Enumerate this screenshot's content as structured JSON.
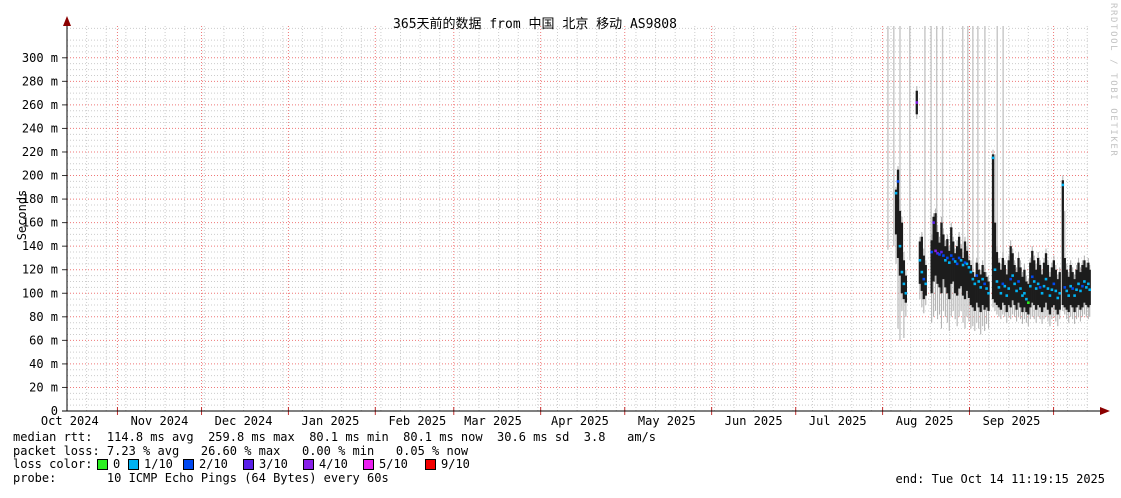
{
  "title": "365天前的数据 from 中国 北京 移动 AS9808",
  "watermark": "RRDTOOL / TOBI OETIKER",
  "y_axis": {
    "label": "Seconds",
    "ticks": [
      {
        "v": 0,
        "label": "0"
      },
      {
        "v": 20,
        "label": "20 m"
      },
      {
        "v": 40,
        "label": "40 m"
      },
      {
        "v": 60,
        "label": "60 m"
      },
      {
        "v": 80,
        "label": "80 m"
      },
      {
        "v": 100,
        "label": "100 m"
      },
      {
        "v": 120,
        "label": "120 m"
      },
      {
        "v": 140,
        "label": "140 m"
      },
      {
        "v": 160,
        "label": "160 m"
      },
      {
        "v": 180,
        "label": "180 m"
      },
      {
        "v": 200,
        "label": "200 m"
      },
      {
        "v": 220,
        "label": "220 m"
      },
      {
        "v": 240,
        "label": "240 m"
      },
      {
        "v": 260,
        "label": "260 m"
      },
      {
        "v": 280,
        "label": "280 m"
      },
      {
        "v": 300,
        "label": "300 m"
      }
    ]
  },
  "x_axis": {
    "range_days": 365,
    "minor_step_days": 7,
    "months": [
      {
        "label": "Oct 2024",
        "tick_day": null,
        "label_day": 1
      },
      {
        "label": "Nov 2024",
        "tick_day": 18,
        "label_day": 33
      },
      {
        "label": "Dec 2024",
        "tick_day": 48,
        "label_day": 63
      },
      {
        "label": "Jan 2025",
        "tick_day": 79,
        "label_day": 94
      },
      {
        "label": "Feb 2025",
        "tick_day": 110,
        "label_day": 125
      },
      {
        "label": "Mar 2025",
        "tick_day": 138,
        "label_day": 152
      },
      {
        "label": "Apr 2025",
        "tick_day": 169,
        "label_day": 183
      },
      {
        "label": "May 2025",
        "tick_day": 199,
        "label_day": 214
      },
      {
        "label": "Jun 2025",
        "tick_day": 230,
        "label_day": 245
      },
      {
        "label": "Jul 2025",
        "tick_day": 260,
        "label_day": 275
      },
      {
        "label": "Aug 2025",
        "tick_day": 291,
        "label_day": 306
      },
      {
        "label": "Sep 2025",
        "tick_day": 322,
        "label_day": 337
      },
      {
        "label": null,
        "tick_day": 352,
        "label_day": null
      }
    ]
  },
  "legend": {
    "median_rtt_line": "median rtt:  114.8 ms avg  259.8 ms max  80.1 ms min  80.1 ms now  30.6 ms sd  3.8   am/s",
    "packet_loss_line": "packet loss: 7.23 % avg   26.60 % max   0.00 % min   0.05 % now",
    "loss_color_label": "loss color:",
    "loss_items": [
      {
        "label": "0",
        "color": "#2bef20"
      },
      {
        "label": "1/10",
        "color": "#00b2f2"
      },
      {
        "label": "2/10",
        "color": "#0048f0"
      },
      {
        "label": "3/10",
        "color": "#5a20e8"
      },
      {
        "label": "4/10",
        "color": "#8820e8"
      },
      {
        "label": "5/10",
        "color": "#ea20f0"
      },
      {
        "label": "9/10",
        "color": "#f20000"
      }
    ],
    "probe_line": "probe:       10 ICMP Echo Pings (64 Bytes) every 60s",
    "end_text": "end: Tue Oct 14 11:19:15 2025"
  },
  "chart_data": {
    "type": "line",
    "subtype": "smokeping-latency-smoke",
    "title": "365天前的数据 from 中国 北京 移动 AS9808",
    "ylabel": "Seconds",
    "ylim_ms": [
      0,
      327
    ],
    "x_unit": "days (0 = start of 365-day window, 365 = Tue Oct 14 11:19:15 2025)",
    "grid": {
      "h_major_step_ms": 20,
      "h_minor_step_ms": 5,
      "v_minor_step_days": 7,
      "major_color": "#ef7777",
      "minor_color": "#cccccc"
    },
    "stats": {
      "median_rtt": {
        "avg_ms": 114.8,
        "max_ms": 259.8,
        "min_ms": 80.1,
        "now_ms": 80.1,
        "sd_ms": 30.6,
        "am_s": 3.8
      },
      "packet_loss": {
        "avg_pct": 7.23,
        "max_pct": 26.6,
        "min_pct": 0.0,
        "now_pct": 0.05
      }
    },
    "loss_palette": {
      "0": "#2bef20",
      "1": "#00b2f2",
      "2": "#0048f0",
      "3": "#5a20e8",
      "4": "#8820e8",
      "5": "#ea20f0",
      "9": "#f20000"
    },
    "gray_lines_format": [
      "day",
      "bottom_ms"
    ],
    "gray_lines": [
      [
        292.9,
        137
      ],
      [
        295.0,
        140
      ],
      [
        297.2,
        134
      ],
      [
        300.7,
        128
      ],
      [
        306.1,
        124
      ],
      [
        308.3,
        121
      ],
      [
        310.3,
        148
      ],
      [
        312.4,
        150
      ],
      [
        319.6,
        111
      ],
      [
        321.4,
        109
      ],
      [
        323.2,
        107
      ],
      [
        325.0,
        107
      ],
      [
        327.5,
        110
      ],
      [
        331.9,
        94
      ],
      [
        334.0,
        97
      ]
    ],
    "columns_format": [
      "day",
      "whisker_lo_ms",
      "whisker_hi_ms",
      "band_lo_ms",
      "band_hi_ms",
      "median_ms",
      "loss_key"
    ],
    "columns": [
      [
        295.8,
        125,
        190,
        150,
        188,
        185,
        "1"
      ],
      [
        296.5,
        70,
        208,
        130,
        205,
        195,
        "2"
      ],
      [
        297.2,
        60,
        180,
        115,
        170,
        140,
        "1"
      ],
      [
        297.9,
        85,
        165,
        100,
        160,
        118,
        "1"
      ],
      [
        298.6,
        62,
        135,
        95,
        128,
        108,
        "1"
      ],
      [
        299.3,
        80,
        120,
        92,
        115,
        100,
        "1"
      ],
      [
        303.2,
        248,
        276,
        252,
        272,
        262,
        "4"
      ],
      [
        304.3,
        95,
        148,
        108,
        144,
        128,
        "1"
      ],
      [
        305.0,
        88,
        152,
        102,
        148,
        118,
        "1"
      ],
      [
        305.7,
        83,
        138,
        95,
        132,
        112,
        "2"
      ],
      [
        306.4,
        90,
        128,
        98,
        124,
        108,
        "1"
      ],
      [
        308.5,
        75,
        150,
        100,
        145,
        135,
        "2"
      ],
      [
        309.2,
        80,
        168,
        110,
        165,
        160,
        "3"
      ],
      [
        309.9,
        85,
        172,
        115,
        168,
        136,
        "4"
      ],
      [
        310.6,
        78,
        158,
        108,
        152,
        134,
        "3"
      ],
      [
        311.3,
        82,
        148,
        105,
        143,
        133,
        "2"
      ],
      [
        312.0,
        70,
        165,
        100,
        160,
        135,
        "3"
      ],
      [
        312.7,
        85,
        155,
        112,
        150,
        132,
        "2"
      ],
      [
        313.4,
        80,
        145,
        105,
        140,
        128,
        "1"
      ],
      [
        314.1,
        75,
        150,
        100,
        146,
        130,
        "2"
      ],
      [
        314.8,
        68,
        140,
        95,
        136,
        126,
        "1"
      ],
      [
        315.5,
        80,
        160,
        108,
        156,
        132,
        "2"
      ],
      [
        316.2,
        85,
        148,
        110,
        144,
        129,
        "2"
      ],
      [
        316.9,
        78,
        138,
        100,
        134,
        127,
        "1"
      ],
      [
        317.6,
        72,
        145,
        98,
        140,
        125,
        "2"
      ],
      [
        318.3,
        80,
        152,
        104,
        148,
        130,
        "2"
      ],
      [
        319.0,
        85,
        142,
        106,
        138,
        128,
        "1"
      ],
      [
        319.7,
        75,
        135,
        98,
        130,
        124,
        "1"
      ],
      [
        320.4,
        70,
        148,
        95,
        144,
        126,
        "2"
      ],
      [
        321.1,
        80,
        140,
        102,
        136,
        125,
        "1"
      ],
      [
        321.8,
        76,
        132,
        96,
        128,
        122,
        "1"
      ],
      [
        322.5,
        70,
        128,
        90,
        124,
        118,
        "1"
      ],
      [
        323.2,
        72,
        122,
        88,
        118,
        112,
        "1"
      ],
      [
        323.9,
        68,
        118,
        85,
        114,
        108,
        "1"
      ],
      [
        324.6,
        75,
        130,
        92,
        126,
        115,
        "2"
      ],
      [
        325.3,
        70,
        125,
        88,
        120,
        110,
        "1"
      ],
      [
        326.0,
        65,
        120,
        84,
        116,
        105,
        "1"
      ],
      [
        326.7,
        72,
        128,
        90,
        124,
        112,
        "1"
      ],
      [
        327.4,
        68,
        122,
        86,
        118,
        108,
        "2"
      ],
      [
        328.1,
        74,
        118,
        88,
        114,
        104,
        "1"
      ],
      [
        328.8,
        70,
        115,
        85,
        110,
        100,
        "1"
      ],
      [
        330.4,
        88,
        222,
        95,
        218,
        215,
        "1"
      ],
      [
        331.1,
        85,
        218,
        92,
        160,
        120,
        "1"
      ],
      [
        331.8,
        82,
        140,
        90,
        135,
        110,
        "1"
      ],
      [
        332.5,
        80,
        130,
        88,
        126,
        105,
        "1"
      ],
      [
        333.2,
        78,
        125,
        86,
        120,
        100,
        "1"
      ],
      [
        333.9,
        82,
        135,
        92,
        130,
        108,
        "2"
      ],
      [
        334.6,
        80,
        128,
        90,
        124,
        106,
        "1"
      ],
      [
        335.3,
        75,
        120,
        84,
        116,
        98,
        "1"
      ],
      [
        336.0,
        80,
        132,
        90,
        128,
        104,
        "1"
      ],
      [
        336.7,
        78,
        145,
        88,
        140,
        112,
        "2"
      ],
      [
        337.4,
        82,
        138,
        94,
        134,
        115,
        "1"
      ],
      [
        338.1,
        80,
        128,
        90,
        124,
        108,
        "1"
      ],
      [
        338.8,
        76,
        122,
        86,
        118,
        102,
        "1"
      ],
      [
        339.5,
        80,
        135,
        92,
        130,
        110,
        "2"
      ],
      [
        340.2,
        78,
        128,
        88,
        122,
        104,
        "1"
      ],
      [
        340.9,
        74,
        118,
        84,
        114,
        98,
        "1"
      ],
      [
        341.6,
        78,
        125,
        88,
        120,
        100,
        "1"
      ],
      [
        342.3,
        75,
        115,
        84,
        110,
        95,
        "1"
      ],
      [
        343.0,
        72,
        112,
        82,
        108,
        92,
        "0"
      ],
      [
        343.7,
        78,
        130,
        88,
        126,
        106,
        "1"
      ],
      [
        344.4,
        80,
        140,
        92,
        136,
        114,
        "2"
      ],
      [
        345.1,
        78,
        132,
        90,
        128,
        110,
        "1"
      ],
      [
        345.8,
        75,
        125,
        86,
        120,
        104,
        "1"
      ],
      [
        346.5,
        80,
        135,
        90,
        130,
        108,
        "1"
      ],
      [
        347.2,
        78,
        128,
        88,
        124,
        105,
        "2"
      ],
      [
        347.9,
        74,
        120,
        84,
        116,
        100,
        "1"
      ],
      [
        348.6,
        78,
        130,
        88,
        126,
        106,
        "1"
      ],
      [
        349.3,
        80,
        138,
        92,
        134,
        112,
        "1"
      ],
      [
        350.0,
        76,
        128,
        86,
        124,
        104,
        "1"
      ],
      [
        350.7,
        72,
        118,
        82,
        114,
        98,
        "1"
      ],
      [
        351.4,
        78,
        126,
        88,
        122,
        103,
        "1"
      ],
      [
        352.1,
        80,
        132,
        90,
        128,
        108,
        "2"
      ],
      [
        352.8,
        76,
        124,
        86,
        120,
        102,
        "1"
      ],
      [
        353.5,
        72,
        116,
        82,
        112,
        96,
        "1"
      ],
      [
        354.2,
        78,
        122,
        86,
        118,
        100,
        "1"
      ],
      [
        355.3,
        85,
        200,
        90,
        196,
        192,
        "1"
      ],
      [
        356.0,
        82,
        170,
        88,
        130,
        105,
        "2"
      ],
      [
        356.7,
        78,
        125,
        86,
        120,
        102,
        "1"
      ],
      [
        357.4,
        75,
        118,
        84,
        114,
        98,
        "1"
      ],
      [
        358.1,
        80,
        128,
        90,
        124,
        106,
        "1"
      ],
      [
        358.8,
        78,
        122,
        88,
        118,
        104,
        "2"
      ],
      [
        359.5,
        74,
        116,
        84,
        112,
        98,
        "1"
      ],
      [
        360.2,
        78,
        124,
        88,
        120,
        103,
        "1"
      ],
      [
        360.9,
        80,
        130,
        90,
        126,
        108,
        "1"
      ],
      [
        361.6,
        76,
        122,
        86,
        118,
        102,
        "1"
      ],
      [
        362.3,
        80,
        128,
        88,
        124,
        106,
        "2"
      ],
      [
        363.0,
        82,
        132,
        92,
        128,
        110,
        "1"
      ],
      [
        363.7,
        80,
        126,
        90,
        122,
        105,
        "1"
      ],
      [
        364.4,
        78,
        130,
        88,
        126,
        108,
        "1"
      ],
      [
        364.9,
        80,
        124,
        90,
        120,
        103,
        "1"
      ]
    ]
  }
}
